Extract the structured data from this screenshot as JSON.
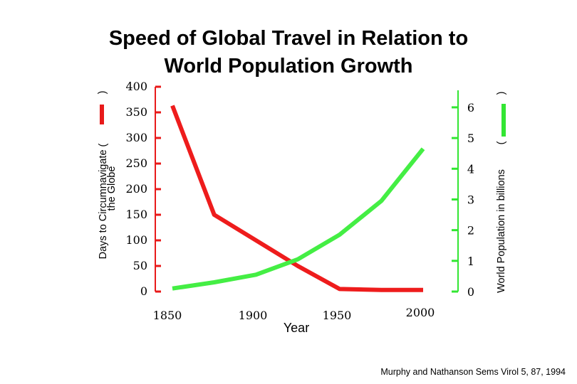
{
  "chart_data": {
    "type": "line",
    "title": "Speed of Global Travel in Relation to World Population Growth",
    "title_lines": [
      "Speed of Global Travel in Relation to",
      "World Population Growth"
    ],
    "xlabel": "Year",
    "x_ticks": [
      "1850",
      "1900",
      "1950",
      "2000"
    ],
    "xlim": [
      1850,
      2000
    ],
    "y_left": {
      "label_lines": [
        "Days to Circumnavigate (",
        "the Globe"
      ],
      "ticks": [
        0,
        50,
        100,
        150,
        200,
        250,
        300,
        350,
        400
      ],
      "ylim": [
        0,
        400
      ],
      "color": "#e81a1a"
    },
    "y_right": {
      "label": "World Population in billions",
      "paren_open": "(",
      "paren_close": ")",
      "ticks": [
        0,
        1,
        2,
        3,
        4,
        5,
        6
      ],
      "ylim": [
        0,
        6.67
      ],
      "color": "#33e633"
    },
    "series": [
      {
        "name": "Days to Circumnavigate the Globe",
        "axis": "left",
        "color": "#ee1c1c",
        "x": [
          1850,
          1875,
          1925,
          1950,
          1975,
          2000
        ],
        "values": [
          363,
          150,
          50,
          5,
          3,
          3
        ]
      },
      {
        "name": "World Population in billions",
        "axis": "right",
        "color": "#44ee44",
        "x": [
          1850,
          1875,
          1900,
          1925,
          1950,
          1975,
          2000
        ],
        "values": [
          0.1,
          0.3,
          0.55,
          1.05,
          1.85,
          2.95,
          4.65
        ]
      }
    ],
    "grid": false
  },
  "source": "Murphy and Nathanson Sems Virol 5, 87, 1994"
}
